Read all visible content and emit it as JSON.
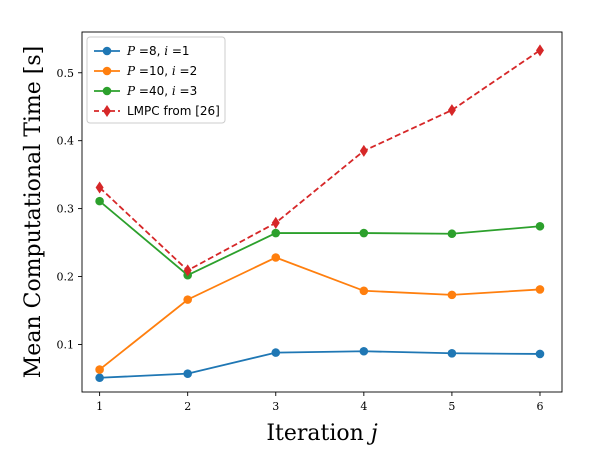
{
  "chart_data": {
    "type": "line",
    "x": [
      1,
      2,
      3,
      4,
      5,
      6
    ],
    "xlabel_text": "Iteration ",
    "xlabel_var": "j",
    "ylabel": "Mean Computational Time [s]",
    "xlim": [
      0.8,
      6.25
    ],
    "ylim": [
      0.03,
      0.56
    ],
    "xticks": [
      1,
      2,
      3,
      4,
      5,
      6
    ],
    "yticks": [
      0.1,
      0.2,
      0.3,
      0.4,
      0.5
    ],
    "ytick_labels": [
      "0.1",
      "0.2",
      "0.3",
      "0.4",
      "0.5"
    ],
    "grid": false,
    "legend_position": "top-left",
    "series": [
      {
        "name": "P =8, i =1",
        "legend_parts": [
          [
            "P",
            true
          ],
          [
            " =8, ",
            false
          ],
          [
            "i",
            true
          ],
          [
            " =1",
            false
          ]
        ],
        "values": [
          0.051,
          0.057,
          0.088,
          0.09,
          0.087,
          0.086
        ],
        "color": "#1f77b4",
        "marker": "circle",
        "dashed": false
      },
      {
        "name": "P =10, i =2",
        "legend_parts": [
          [
            "P",
            true
          ],
          [
            " =10, ",
            false
          ],
          [
            "i",
            true
          ],
          [
            " =2",
            false
          ]
        ],
        "values": [
          0.063,
          0.166,
          0.228,
          0.179,
          0.173,
          0.181
        ],
        "color": "#ff7f0e",
        "marker": "circle",
        "dashed": false
      },
      {
        "name": "P =40, i =3",
        "legend_parts": [
          [
            "P",
            true
          ],
          [
            " =40, ",
            false
          ],
          [
            "i",
            true
          ],
          [
            " =3",
            false
          ]
        ],
        "values": [
          0.311,
          0.202,
          0.264,
          0.264,
          0.263,
          0.274
        ],
        "color": "#2ca02c",
        "marker": "circle",
        "dashed": false
      },
      {
        "name": "LMPC from [26]",
        "legend_parts": [
          [
            "LMPC from [26]",
            false
          ]
        ],
        "values": [
          0.331,
          0.209,
          0.279,
          0.385,
          0.445,
          0.533
        ],
        "color": "#d62728",
        "marker": "diamond",
        "dashed": true
      }
    ]
  }
}
